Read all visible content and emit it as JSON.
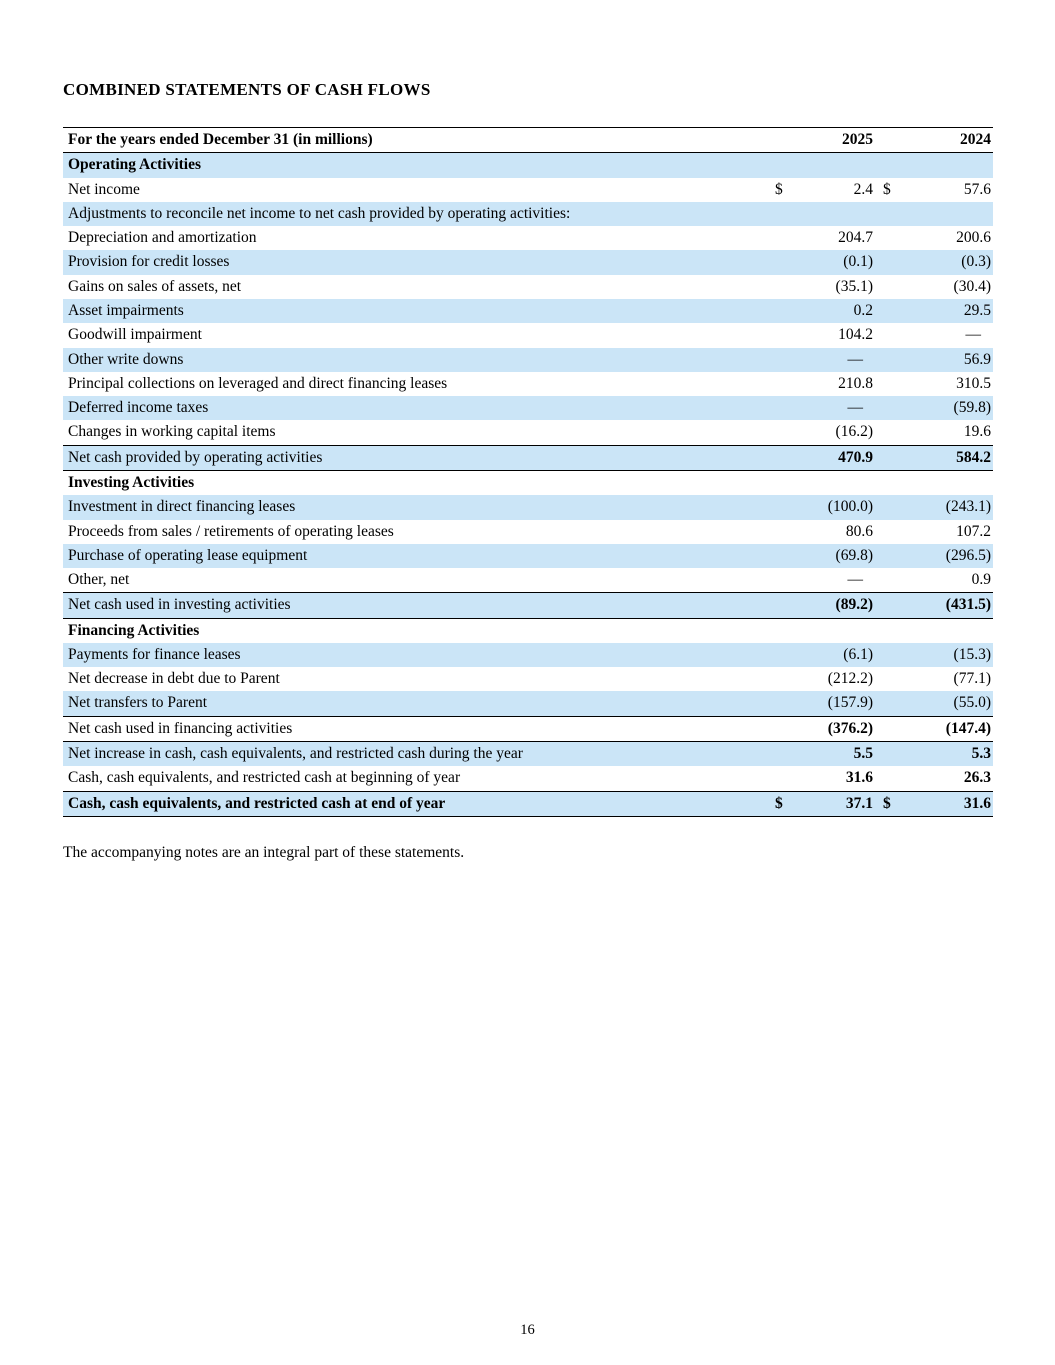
{
  "document": {
    "title": "COMBINED STATEMENTS OF CASH FLOWS",
    "footnote": "The accompanying notes are an integral part of these statements.",
    "page_number": "16"
  },
  "colors": {
    "row_shade": "#cbe5f7"
  },
  "table": {
    "header_label": "For the years ended December 31 (in millions)",
    "year_2025": "2025",
    "year_2024": "2024",
    "rows": [
      {
        "label": "Operating Activities",
        "type": "section",
        "shaded": true
      },
      {
        "label": "Net income",
        "type": "item",
        "shaded": false,
        "d1": "$",
        "v1": "2.4",
        "d2": "$",
        "v2": "57.6"
      },
      {
        "label": "Adjustments to reconcile net income to net cash provided by operating activities:",
        "type": "item",
        "shaded": true
      },
      {
        "label": "Depreciation and amortization",
        "type": "item",
        "shaded": false,
        "v1": "204.7",
        "v2": "200.6"
      },
      {
        "label": "Provision for credit losses",
        "type": "item",
        "shaded": true,
        "v1": "(0.1)",
        "v2": "(0.3)"
      },
      {
        "label": "Gains on sales of assets, net",
        "type": "item",
        "shaded": false,
        "v1": "(35.1)",
        "v2": "(30.4)"
      },
      {
        "label": "Asset impairments",
        "type": "item",
        "shaded": true,
        "v1": "0.2",
        "v2": "29.5"
      },
      {
        "label": "Goodwill impairment",
        "type": "item",
        "shaded": false,
        "v1": "104.2",
        "v2": "—"
      },
      {
        "label": "Other write downs",
        "type": "item",
        "shaded": true,
        "v1": "—",
        "v2": "56.9"
      },
      {
        "label": "Principal collections on leveraged and direct financing leases",
        "type": "item",
        "shaded": false,
        "v1": "210.8",
        "v2": "310.5"
      },
      {
        "label": "Deferred income taxes",
        "type": "item",
        "shaded": true,
        "v1": "—",
        "v2": "(59.8)"
      },
      {
        "label": "Changes in working capital items",
        "type": "item",
        "shaded": false,
        "v1": "(16.2)",
        "v2": "19.6"
      },
      {
        "label": "Net cash provided by operating activities",
        "type": "total",
        "shaded": true,
        "v1": "470.9",
        "v2": "584.2"
      },
      {
        "label": "Investing Activities",
        "type": "section",
        "shaded": false
      },
      {
        "label": "Investment in direct financing leases",
        "type": "item",
        "shaded": true,
        "v1": "(100.0)",
        "v2": "(243.1)"
      },
      {
        "label": "Proceeds from sales / retirements of operating leases",
        "type": "item",
        "shaded": false,
        "v1": "80.6",
        "v2": "107.2"
      },
      {
        "label": "Purchase of operating lease equipment",
        "type": "item",
        "shaded": true,
        "v1": "(69.8)",
        "v2": "(296.5)"
      },
      {
        "label": "Other, net",
        "type": "item",
        "shaded": false,
        "v1": "—",
        "v2": "0.9"
      },
      {
        "label": "Net cash used in investing activities",
        "type": "total",
        "shaded": true,
        "v1": "(89.2)",
        "v2": "(431.5)"
      },
      {
        "label": "Financing Activities",
        "type": "section",
        "shaded": false
      },
      {
        "label": "Payments for finance leases",
        "type": "item",
        "shaded": true,
        "v1": "(6.1)",
        "v2": "(15.3)"
      },
      {
        "label": "Net decrease in debt due to Parent",
        "type": "item",
        "shaded": false,
        "v1": "(212.2)",
        "v2": "(77.1)"
      },
      {
        "label": "Net transfers to Parent",
        "type": "item",
        "shaded": true,
        "v1": "(157.9)",
        "v2": "(55.0)"
      },
      {
        "label": "Net cash used in financing activities",
        "type": "total",
        "shaded": false,
        "v1": "(376.2)",
        "v2": "(147.4)"
      },
      {
        "label": "Net increase in cash, cash equivalents, and restricted cash during the year",
        "type": "boldvals",
        "shaded": true,
        "v1": "5.5",
        "v2": "5.3"
      },
      {
        "label": "Cash, cash equivalents, and restricted cash at beginning of year",
        "type": "boldvals",
        "shaded": false,
        "v1": "31.6",
        "v2": "26.3"
      },
      {
        "label": "Cash, cash equivalents, and restricted cash at end of year",
        "type": "grand",
        "shaded": true,
        "d1": "$",
        "v1": "37.1",
        "d2": "$",
        "v2": "31.6"
      }
    ]
  }
}
